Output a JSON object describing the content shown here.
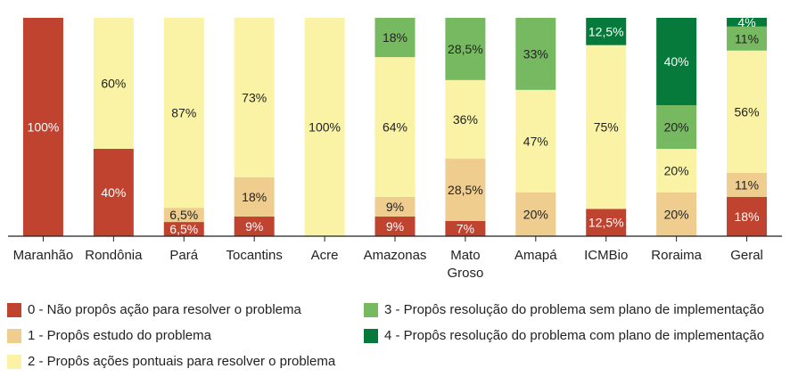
{
  "chart_data": {
    "type": "bar",
    "stacked": true,
    "normalized": true,
    "title": "",
    "xlabel": "",
    "ylabel": "",
    "ylim": [
      0,
      100
    ],
    "grid": false,
    "legend_placement": "bottom",
    "categories": [
      "Maranhão",
      "Rondônia",
      "Pará",
      "Tocantins",
      "Acre",
      "Amazonas",
      "Mato Groso",
      "Amapá",
      "ICMBio",
      "Roraima",
      "Geral"
    ],
    "series": [
      {
        "name": "0 - Não propôs ação para resolver o problema",
        "color": "#c0432f",
        "label_color": "#ffffff",
        "values": [
          100,
          40,
          6.5,
          9,
          0,
          9,
          7,
          0,
          12.5,
          0,
          18
        ],
        "labels": [
          "100%",
          "40%",
          "6,5%",
          "9%",
          "",
          "9%",
          "7%",
          "",
          "12,5%",
          "",
          "18%"
        ]
      },
      {
        "name": "1 - Propôs estudo do problema",
        "color": "#efcd8f",
        "label_color": "#222222",
        "values": [
          0,
          0,
          6.5,
          18,
          0,
          9,
          28.5,
          20,
          0,
          20,
          11
        ],
        "labels": [
          "",
          "",
          "6,5%",
          "18%",
          "",
          "9%",
          "28,5%",
          "20%",
          "",
          "20%",
          "11%"
        ]
      },
      {
        "name": "2 - Propôs ações pontuais para resolver o problema",
        "color": "#faf3a5",
        "label_color": "#222222",
        "values": [
          0,
          60,
          87,
          73,
          100,
          64,
          36,
          47,
          75,
          20,
          56
        ],
        "labels": [
          "",
          "60%",
          "87%",
          "73%",
          "100%",
          "64%",
          "36%",
          "47%",
          "75%",
          "20%",
          "56%"
        ]
      },
      {
        "name": "3 - Propôs resolução do problema sem plano de implementação",
        "color": "#76b960",
        "label_color": "#222222",
        "values": [
          0,
          0,
          0,
          0,
          0,
          18,
          28.5,
          33,
          0,
          20,
          11
        ],
        "labels": [
          "",
          "",
          "",
          "",
          "",
          "18%",
          "28,5%",
          "33%",
          "",
          "20%",
          "11%"
        ]
      },
      {
        "name": "4 - Propôs resolução do problema com plano de implementação",
        "color": "#067a3a",
        "label_color": "#ffffff",
        "values": [
          0,
          0,
          0,
          0,
          0,
          0,
          0,
          0,
          12.5,
          40,
          4
        ],
        "labels": [
          "",
          "",
          "",
          "",
          "",
          "",
          "",
          "",
          "12,5%",
          "40%",
          "4%"
        ]
      }
    ]
  }
}
